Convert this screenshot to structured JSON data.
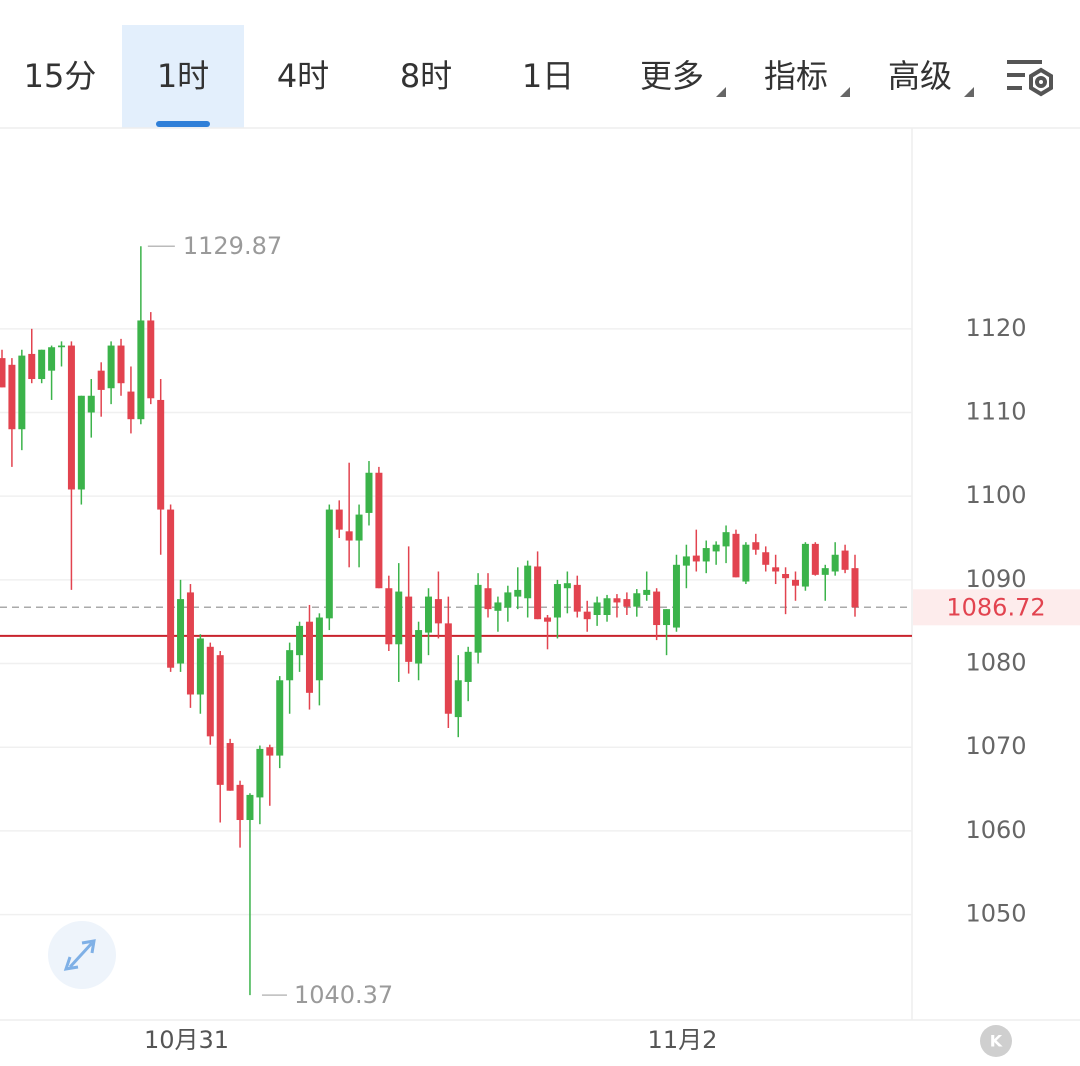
{
  "tabs": {
    "items": [
      "15分",
      "1时",
      "4时",
      "8时",
      "1日",
      "更多",
      "指标",
      "高级"
    ],
    "active": 1
  },
  "badge": "K",
  "chart_data": {
    "type": "candlestick",
    "categories": [
      null,
      null,
      null,
      null,
      null,
      null,
      null,
      null,
      null,
      null,
      null,
      null,
      null,
      null,
      null,
      null,
      null,
      null,
      "10月31",
      null,
      null,
      null,
      null,
      null,
      null,
      null,
      null,
      null,
      null,
      null,
      null,
      null,
      null,
      null,
      null,
      null,
      null,
      null,
      null,
      null,
      null,
      null,
      null,
      null,
      null,
      null,
      null,
      null,
      null,
      null,
      null,
      null,
      null,
      null,
      null,
      null,
      null,
      null,
      null,
      null,
      null,
      null,
      null,
      null,
      null,
      null,
      null,
      null,
      "11月2",
      null,
      null,
      null,
      null,
      null,
      null,
      null,
      null,
      null,
      null,
      null,
      null,
      null,
      null,
      null,
      null,
      null,
      null
    ],
    "open": [
      1116.5,
      1115.7,
      1108,
      1117,
      1114,
      1115,
      1117.8,
      1118,
      1100.8,
      1110,
      1115,
      1112.9,
      1118,
      1112.5,
      1109.2,
      1121,
      1111.5,
      1098.4,
      1080,
      1088.5,
      1076.3,
      1082,
      1081,
      1070.5,
      1065.5,
      1061.3,
      1064,
      1070,
      1069,
      1078,
      1081,
      1085,
      1078,
      1085.4,
      1098.4,
      1095.8,
      1094.7,
      1098,
      1102.8,
      1089,
      1082.3,
      1088,
      1080,
      1083.7,
      1087.7,
      1084.8,
      1073.6,
      1077.8,
      1081.3,
      1089,
      1086.3,
      1086.7,
      1088,
      1087.8,
      1091.6,
      1085.5,
      1085.5,
      1089,
      1089.4,
      1086.2,
      1085.8,
      1085.8,
      1087.8,
      1087.7,
      1086.8,
      1088.2,
      1088.6,
      1084.6,
      1084.3,
      1091.7,
      1092.9,
      1092.2,
      1093.4,
      1094,
      1095.5,
      1089.8,
      1094.5,
      1093.3,
      1091.5,
      1090.7,
      1090,
      1089.2,
      1094.3,
      1090.6,
      1091,
      1093.5,
      1091.4
    ],
    "high": [
      1117.5,
      1116.5,
      1117.5,
      1120,
      1117.5,
      1118,
      1118.5,
      1118.5,
      1112,
      1114,
      1116,
      1118.5,
      1118.8,
      1115.5,
      1129.87,
      1122,
      1114,
      1099,
      1090,
      1089.5,
      1083.5,
      1082.5,
      1081.5,
      1071,
      1066,
      1064.5,
      1070.2,
      1070.3,
      1078.5,
      1082.5,
      1085,
      1087,
      1086,
      1099,
      1099.5,
      1104,
      1099,
      1104.2,
      1103.5,
      1090.5,
      1092,
      1094,
      1085,
      1089,
      1091,
      1088,
      1081,
      1082,
      1090.8,
      1090.8,
      1088,
      1089.3,
      1091.5,
      1092.3,
      1093.4,
      1085.8,
      1090,
      1091,
      1090.5,
      1087.5,
      1088,
      1088.2,
      1088.3,
      1088.5,
      1088.9,
      1091,
      1089,
      1086.5,
      1093,
      1094.2,
      1096,
      1094.7,
      1094.6,
      1096.5,
      1096,
      1094.5,
      1095.5,
      1094,
      1093,
      1091.5,
      1091,
      1094.5,
      1094.5,
      1091.8,
      1094.5,
      1094.2,
      1093
    ],
    "low": [
      1113,
      1103.5,
      1105.5,
      1113.5,
      1113.5,
      1111.5,
      1115.5,
      1088.8,
      1099,
      1107,
      1109.5,
      1111,
      1112,
      1107.5,
      1108.6,
      1111,
      1093,
      1079,
      1079,
      1074.7,
      1074,
      1070.3,
      1061,
      1064.8,
      1058,
      1040.37,
      1060.8,
      1063,
      1067.5,
      1074,
      1079,
      1074.5,
      1075,
      1084,
      1095,
      1091.5,
      1091.5,
      1096.5,
      1089,
      1081.5,
      1077.8,
      1078.8,
      1078,
      1081,
      1083,
      1072.3,
      1071.2,
      1075.5,
      1080,
      1085.5,
      1083.8,
      1085,
      1086.5,
      1085.5,
      1085.3,
      1081.7,
      1083,
      1086,
      1085.5,
      1083.8,
      1084.5,
      1085,
      1085.5,
      1085.8,
      1085.6,
      1087.5,
      1082.8,
      1081,
      1083.8,
      1089,
      1091,
      1090.8,
      1091.8,
      1092,
      1090.3,
      1089.5,
      1093,
      1091,
      1089.5,
      1085.9,
      1087.5,
      1088.7,
      1090.5,
      1087.5,
      1090.5,
      1090.8,
      1085.6
    ],
    "close": [
      1113,
      1108,
      1116.8,
      1114,
      1117.5,
      1117.8,
      1118,
      1100.8,
      1112,
      1112,
      1112.7,
      1118,
      1113.5,
      1109.2,
      1121,
      1111.7,
      1098.4,
      1079.5,
      1087.7,
      1076.3,
      1083,
      1071.3,
      1065.5,
      1064.8,
      1061.3,
      1064.3,
      1069.8,
      1069,
      1078,
      1081.6,
      1084.5,
      1076.5,
      1085.5,
      1098.4,
      1096,
      1094.7,
      1097.8,
      1102.8,
      1089,
      1082.3,
      1088.6,
      1080.2,
      1084,
      1088,
      1084.8,
      1074,
      1078,
      1081.4,
      1089.4,
      1086.5,
      1087.3,
      1088.5,
      1088.8,
      1091.7,
      1085.3,
      1085,
      1089.5,
      1089.6,
      1086.2,
      1085.3,
      1087.3,
      1087.8,
      1087.3,
      1086.8,
      1088.4,
      1088.8,
      1084.6,
      1086.5,
      1091.8,
      1092.8,
      1092.2,
      1093.8,
      1094.2,
      1095.7,
      1090.3,
      1094.2,
      1093.6,
      1091.8,
      1091,
      1090.2,
      1089.3,
      1094.3,
      1090.6,
      1091.4,
      1093,
      1091.2,
      1086.72
    ],
    "up_color": "#3bb34a",
    "down_color": "#e2434f",
    "max_label": 1129.87,
    "min_label": 1040.37,
    "last_price": 1086.72,
    "position_line": 1083.3,
    "ylim": [
      1037.4,
      1144
    ],
    "yticks": [
      1050,
      1060,
      1070,
      1080,
      1090,
      1100,
      1110,
      1120
    ],
    "grid": true
  }
}
